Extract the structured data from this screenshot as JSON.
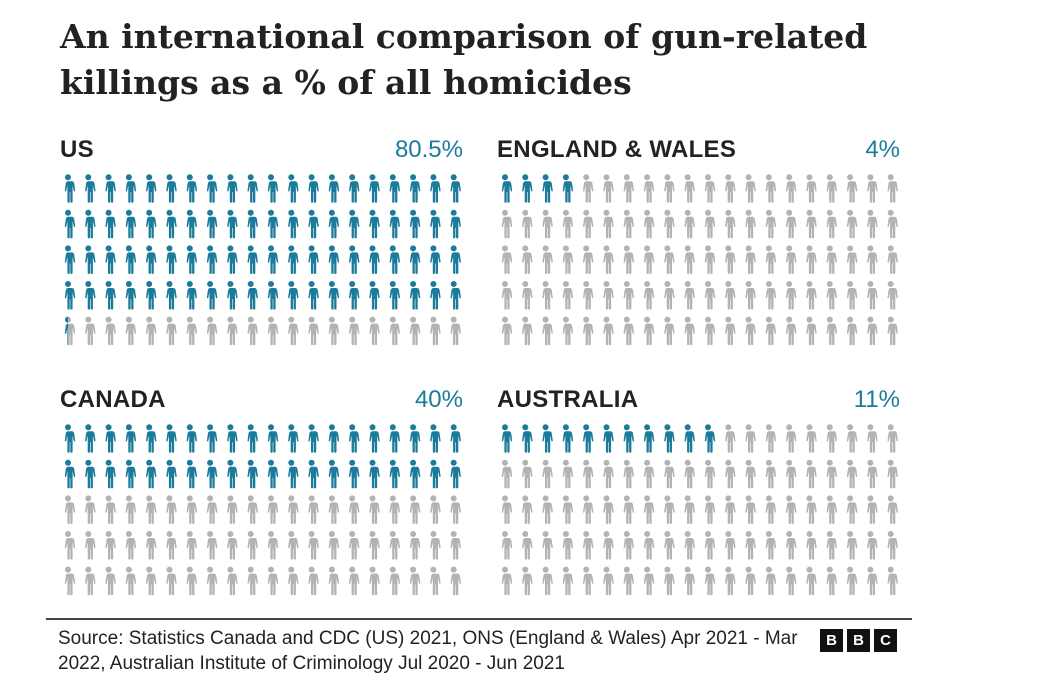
{
  "chart_data": {
    "type": "pictogram",
    "title": "An international comparison of gun-related killings as a % of all homicides",
    "grid": {
      "rows": 5,
      "columns": 20,
      "icons_per_panel": 100,
      "icon": "person-icon"
    },
    "colors": {
      "filled": "#1b7b9b",
      "empty": "#b3b3b3"
    },
    "panels": [
      {
        "name": "US",
        "value": 80.5,
        "label": "80.5%"
      },
      {
        "name": "ENGLAND & WALES",
        "value": 4,
        "label": "4%"
      },
      {
        "name": "CANADA",
        "value": 40,
        "label": "40%"
      },
      {
        "name": "AUSTRALIA",
        "value": 11,
        "label": "11%"
      }
    ]
  },
  "footer": {
    "source": "Source: Statistics Canada and CDC (US) 2021, ONS (England & Wales) Apr 2021 - Mar 2022, Australian Institute of Criminology Jul 2020 - Jun 2021",
    "logo": [
      "B",
      "B",
      "C"
    ]
  }
}
